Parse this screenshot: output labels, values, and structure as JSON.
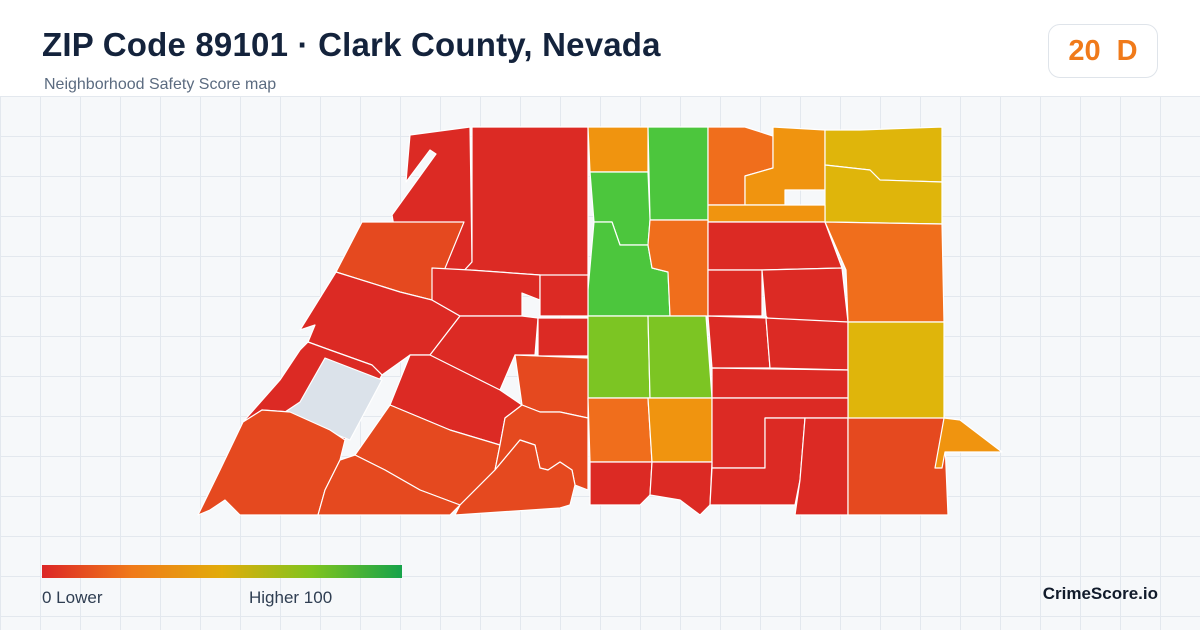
{
  "header": {
    "title": "ZIP Code 89101 · Clark County, Nevada",
    "subtitle": "Neighborhood Safety Score map"
  },
  "score": {
    "value": "20",
    "grade": "D",
    "color": "#f07a1a"
  },
  "legend": {
    "low_label": "0  Lower",
    "high_label": "Higher  100",
    "gradient_colors": [
      "#dc2626",
      "#f07a1a",
      "#e2ac0a",
      "#7fc41e",
      "#16a34a"
    ]
  },
  "brand": "CrimeScore.io",
  "map": {
    "tract_colors": {
      "red": "#dc2a24",
      "red_orange": "#e5491f",
      "orange": "#f06e1c",
      "amber": "#f0940f",
      "gold": "#dfb50b",
      "yellow_green": "#7cc523",
      "green": "#4cc63d",
      "no_data": "#dbe2ea"
    }
  }
}
